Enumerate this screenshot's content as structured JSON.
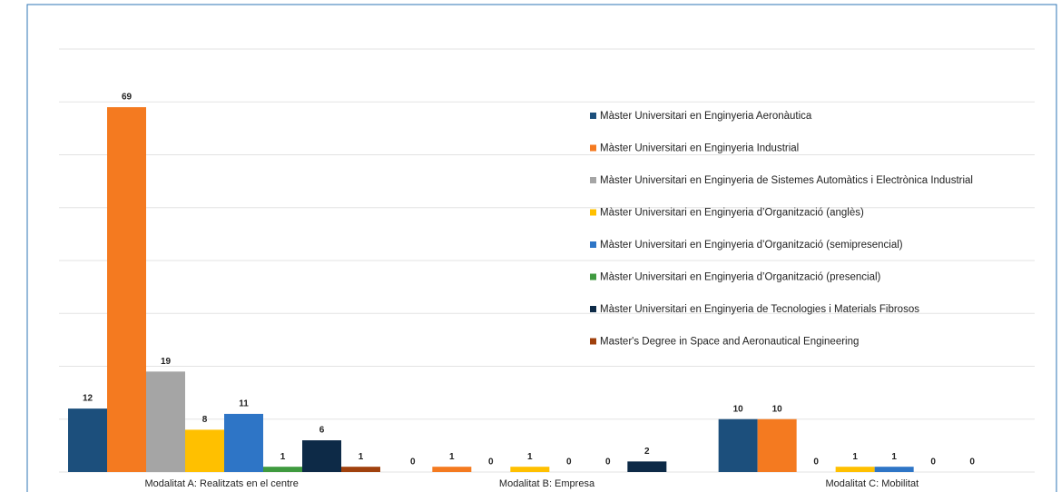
{
  "chart_data": {
    "type": "bar",
    "categories": [
      "Modalitat A: Realitzats en el centre",
      "Modalitat B: Empresa",
      "Modalitat C: Mobilitat"
    ],
    "series": [
      {
        "name": "Màster Universitari en Enginyeria Aeronàutica",
        "color": "#1c4f7c",
        "values": [
          12,
          0,
          10
        ]
      },
      {
        "name": "Màster Universitari en Enginyeria Industrial",
        "color": "#f47a20",
        "values": [
          69,
          1,
          10
        ]
      },
      {
        "name": "Màster Universitari en Enginyeria de Sistemes Automàtics i Electrònica Industrial",
        "color": "#a5a5a5",
        "values": [
          19,
          0,
          0
        ]
      },
      {
        "name": "Màster Universitari en Enginyeria d’Organització (anglès)",
        "color": "#ffc000",
        "values": [
          8,
          1,
          1
        ]
      },
      {
        "name": "Màster Universitari en Enginyeria d’Organització (semipresencial)",
        "color": "#2e75c6",
        "values": [
          11,
          0,
          1
        ]
      },
      {
        "name": "Màster Universitari en Enginyeria d’Organització (presencial)",
        "color": "#3f9a3f",
        "values": [
          1,
          0,
          0
        ]
      },
      {
        "name": "Màster Universitari en Enginyeria de Tecnologies i Materials Fibrosos",
        "color": "#0d2a47",
        "values": [
          6,
          2,
          0
        ]
      },
      {
        "name": "Master's Degree in Space and Aeronautical Engineering",
        "color": "#a0410d",
        "values": [
          1,
          null,
          null
        ]
      }
    ],
    "ylim": [
      0,
      80
    ],
    "yticks": [
      0,
      10,
      20,
      30,
      40,
      50,
      60,
      70,
      80
    ],
    "grid": true,
    "legend": "right"
  }
}
